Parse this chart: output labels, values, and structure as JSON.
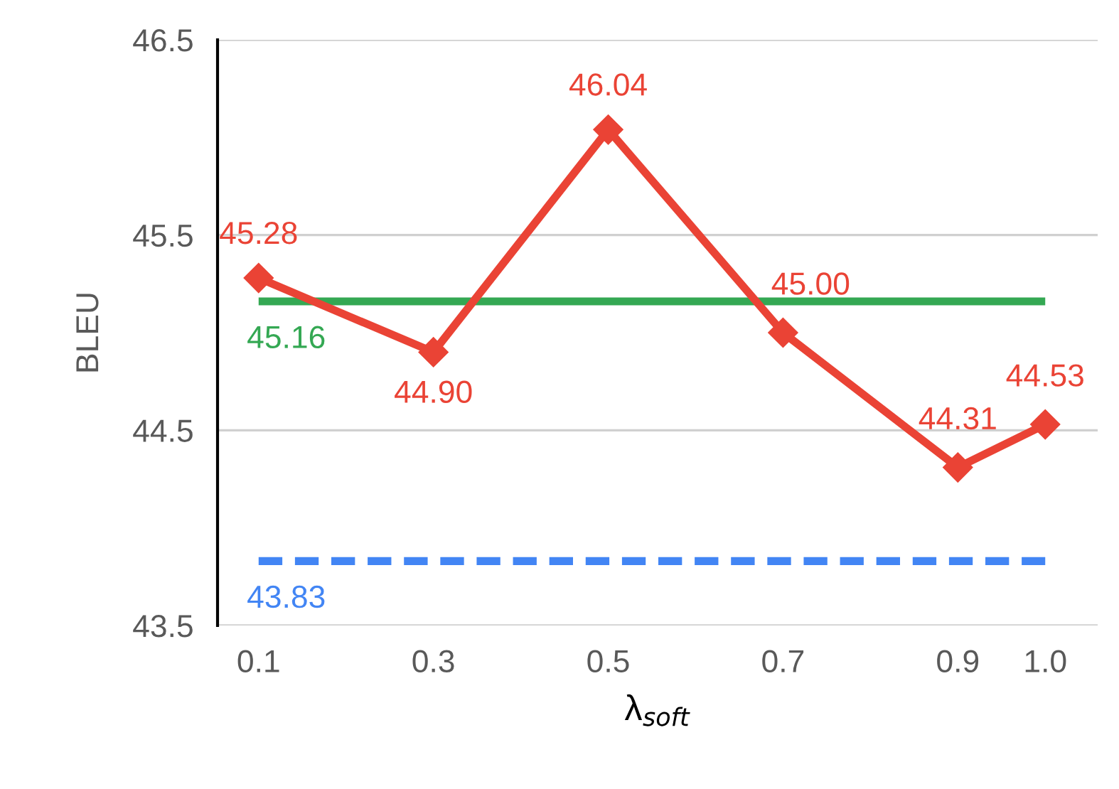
{
  "chart_data": {
    "type": "line",
    "xlabel": "λ$_{soft}$",
    "ylabel": "BLEU",
    "x": [
      0.1,
      0.3,
      0.5,
      0.7,
      0.9,
      1.0
    ],
    "series": [
      {
        "color": "#ea4335",
        "values": [
          45.28,
          44.9,
          46.04,
          45.0,
          44.31,
          44.53
        ],
        "value_labels": [
          "45.28",
          "44.90",
          "46.04",
          "45.00",
          "44.31",
          "44.53"
        ]
      }
    ],
    "marker": "diamond",
    "line_style": "solid",
    "ref_lines": [
      {
        "axis": "y",
        "value": 45.16,
        "label": "45.16",
        "color": "#34a853",
        "line_style": "solid"
      },
      {
        "axis": "y",
        "value": 43.83,
        "label": "43.83",
        "color": "#4285f4",
        "line_style": "dashed"
      }
    ],
    "xlim": [
      0.053,
      1.06
    ],
    "xticks": [
      0.1,
      0.3,
      0.5,
      0.7,
      0.9,
      {
        "value": 1.0,
        "label": "1.0"
      }
    ],
    "ylim": [
      43.5,
      46.5
    ],
    "yticks": [
      43.5,
      44.5,
      45.5,
      46.5
    ],
    "grid": "y"
  }
}
